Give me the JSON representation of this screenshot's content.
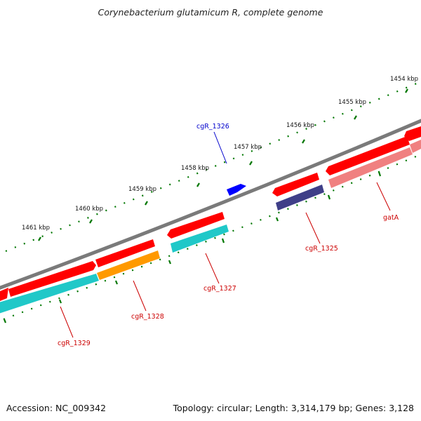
{
  "title": "Corynebacterium glutamicum R, complete genome",
  "footer": {
    "accession": "Accession: NC_009342",
    "stats": "Topology: circular; Length: 3,314,179 bp; Genes: 3,128"
  },
  "scale_labels": [
    "1454 kbp",
    "1455 kbp",
    "1456 kbp",
    "1457 kbp",
    "1458 kbp",
    "1459 kbp",
    "1460 kbp",
    "1461 kbp"
  ],
  "gene_labels": {
    "cgR_1326": "cgR_1326",
    "cgR_1325": "cgR_1325",
    "gatA": "gatA",
    "cgR_1327": "cgR_1327",
    "cgR_1328": "cgR_1328",
    "cgR_1329": "cgR_1329"
  },
  "colors": {
    "backbone": "#7a7a7a",
    "cds_forward": "#ff0000",
    "cds_reverse_red": "#f08080",
    "cyan_feature": "#20c8c8",
    "orange_feature": "#ff9900",
    "navy_feature": "#3f3f88",
    "blue_feature": "#0000ff",
    "tick_green": "#007700",
    "label_red": "#cc0000",
    "label_blue": "#0000cc"
  }
}
